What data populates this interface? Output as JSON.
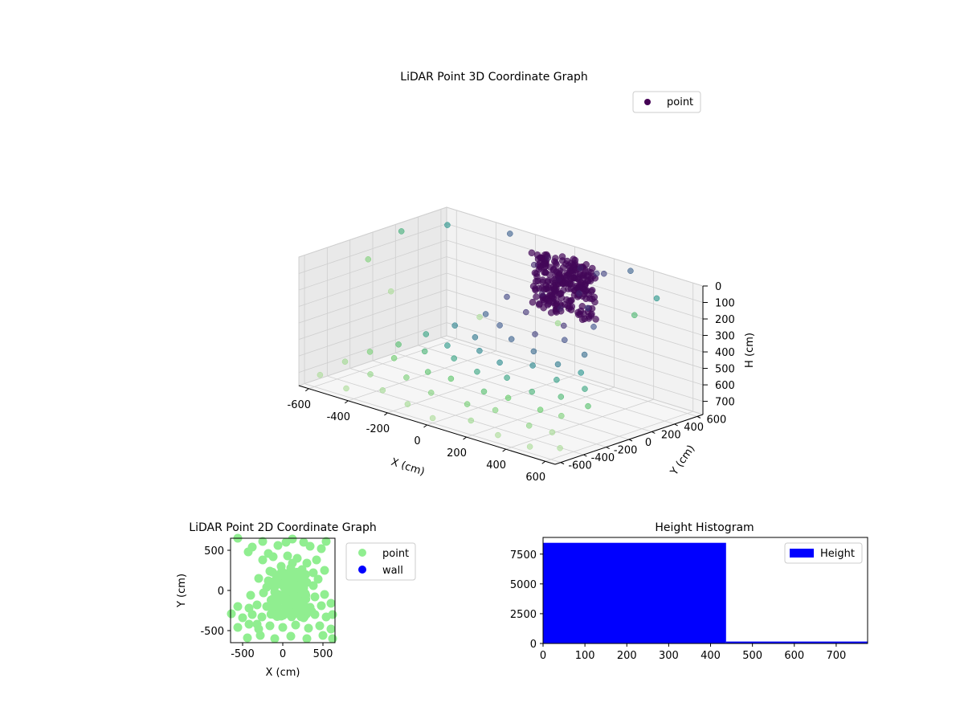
{
  "chart_data": [
    {
      "type": "scatter",
      "title": "LiDAR Point 3D Coordinate Graph",
      "xlabel": "X (cm)",
      "ylabel": "Y (cm)",
      "zlabel": "H (cm)",
      "xlim": [
        -650,
        650
      ],
      "ylim": [
        -650,
        650
      ],
      "zlim": [
        0,
        780
      ],
      "z_inverted": true,
      "xticks": [
        -600,
        -400,
        -200,
        0,
        200,
        400,
        600
      ],
      "yticks": [
        -600,
        -400,
        -200,
        0,
        200,
        400,
        600
      ],
      "zticks": [
        0,
        100,
        200,
        300,
        400,
        500,
        600,
        700
      ],
      "colormap": "viridis",
      "legend": {
        "entries": [
          "point"
        ],
        "position": "upper right"
      },
      "grid": true,
      "series": [
        {
          "name": "point",
          "dense_cluster": {
            "center": [
              0,
              550
            ],
            "radius": 160,
            "z_range": [
              50,
              380
            ]
          },
          "points": [
            [
              -60,
              520,
              60
            ],
            [
              80,
              560,
              80
            ],
            [
              140,
              600,
              100
            ],
            [
              200,
              560,
              70
            ],
            [
              -120,
              500,
              120
            ],
            [
              20,
              470,
              150
            ],
            [
              120,
              480,
              200
            ],
            [
              -40,
              430,
              250
            ],
            [
              60,
              420,
              300
            ],
            [
              180,
              450,
              260
            ],
            [
              -200,
              400,
              320
            ],
            [
              240,
              400,
              340
            ],
            [
              -80,
              360,
              360
            ],
            [
              100,
              380,
              380
            ],
            [
              -250,
              300,
              420
            ],
            [
              -150,
              250,
              440
            ],
            [
              0,
              300,
              450
            ],
            [
              150,
              300,
              430
            ],
            [
              280,
              250,
              460
            ],
            [
              -320,
              150,
              480
            ],
            [
              -200,
              120,
              500
            ],
            [
              -50,
              180,
              470
            ],
            [
              80,
              150,
              490
            ],
            [
              220,
              120,
              510
            ],
            [
              360,
              80,
              500
            ],
            [
              -380,
              0,
              520
            ],
            [
              -260,
              -20,
              540
            ],
            [
              -120,
              20,
              530
            ],
            [
              0,
              -10,
              550
            ],
            [
              150,
              20,
              520
            ],
            [
              300,
              -30,
              540
            ],
            [
              420,
              10,
              560
            ],
            [
              -450,
              -120,
              580
            ],
            [
              -300,
              -150,
              560
            ],
            [
              -180,
              -100,
              570
            ],
            [
              -40,
              -140,
              590
            ],
            [
              100,
              -120,
              580
            ],
            [
              250,
              -160,
              600
            ],
            [
              380,
              -130,
              590
            ],
            [
              500,
              -100,
              610
            ],
            [
              -520,
              -250,
              620
            ],
            [
              -380,
              -280,
              600
            ],
            [
              -220,
              -260,
              630
            ],
            [
              -80,
              -300,
              610
            ],
            [
              70,
              -270,
              640
            ],
            [
              210,
              -300,
              620
            ],
            [
              350,
              -260,
              650
            ],
            [
              480,
              -300,
              630
            ],
            [
              -560,
              -400,
              660
            ],
            [
              -420,
              -420,
              680
            ],
            [
              -260,
              -380,
              650
            ],
            [
              -100,
              -440,
              670
            ],
            [
              60,
              -400,
              690
            ],
            [
              220,
              -430,
              660
            ],
            [
              380,
              -410,
              700
            ],
            [
              520,
              -450,
              680
            ],
            [
              -600,
              -550,
              720
            ],
            [
              -450,
              -580,
              740
            ],
            [
              -300,
              -520,
              710
            ],
            [
              -150,
              -560,
              730
            ],
            [
              0,
              -600,
              750
            ],
            [
              160,
              -540,
              720
            ],
            [
              320,
              -580,
              740
            ],
            [
              470,
              -560,
              760
            ],
            [
              600,
              -520,
              730
            ],
            [
              -560,
              500,
              40
            ],
            [
              -300,
              600,
              20
            ],
            [
              300,
              620,
              30
            ],
            [
              560,
              400,
              50
            ],
            [
              -620,
              200,
              30
            ],
            [
              620,
              100,
              60
            ],
            [
              -500,
              -300,
              40
            ],
            [
              520,
              -400,
              30
            ],
            [
              -200,
              -620,
              50
            ],
            [
              250,
              -620,
              40
            ]
          ]
        }
      ]
    },
    {
      "type": "scatter",
      "title": "LiDAR Point 2D Coordinate Graph",
      "xlabel": "X (cm)",
      "ylabel": "Y (cm)",
      "xlim": [
        -650,
        650
      ],
      "ylim": [
        -650,
        650
      ],
      "xticks": [
        -500,
        0,
        500
      ],
      "yticks": [
        -500,
        0,
        500
      ],
      "legend": {
        "entries": [
          "point",
          "wall"
        ],
        "position": "outside right"
      },
      "series": [
        {
          "name": "point",
          "color": "#90ee90",
          "points": [
            [
              -560,
              650
            ],
            [
              -430,
              480
            ],
            [
              -380,
              540
            ],
            [
              -250,
              610
            ],
            [
              -180,
              460
            ],
            [
              -60,
              560
            ],
            [
              40,
              600
            ],
            [
              120,
              640
            ],
            [
              260,
              600
            ],
            [
              340,
              550
            ],
            [
              480,
              520
            ],
            [
              540,
              610
            ],
            [
              -250,
              380
            ],
            [
              -120,
              420
            ],
            [
              60,
              430
            ],
            [
              180,
              400
            ],
            [
              300,
              340
            ],
            [
              420,
              380
            ],
            [
              -20,
              300
            ],
            [
              100,
              280
            ],
            [
              240,
              260
            ],
            [
              380,
              220
            ],
            [
              -160,
              240
            ],
            [
              520,
              250
            ],
            [
              -300,
              150
            ],
            [
              -180,
              120
            ],
            [
              -60,
              160
            ],
            [
              60,
              140
            ],
            [
              180,
              120
            ],
            [
              300,
              100
            ],
            [
              440,
              140
            ],
            [
              -120,
              60
            ],
            [
              20,
              40
            ],
            [
              140,
              60
            ],
            [
              260,
              30
            ],
            [
              380,
              60
            ],
            [
              -400,
              -60
            ],
            [
              -240,
              -30
            ],
            [
              -100,
              -20
            ],
            [
              40,
              -40
            ],
            [
              160,
              -60
            ],
            [
              280,
              -40
            ],
            [
              400,
              -80
            ],
            [
              520,
              -50
            ],
            [
              -560,
              -200
            ],
            [
              -420,
              -220
            ],
            [
              -320,
              -180
            ],
            [
              -200,
              -200
            ],
            [
              -80,
              -160
            ],
            [
              60,
              -200
            ],
            [
              200,
              -170
            ],
            [
              340,
              -210
            ],
            [
              480,
              -190
            ],
            [
              600,
              -160
            ],
            [
              -640,
              -290
            ],
            [
              -500,
              -340
            ],
            [
              -380,
              -300
            ],
            [
              -260,
              -330
            ],
            [
              -140,
              -290
            ],
            [
              -20,
              -320
            ],
            [
              120,
              -300
            ],
            [
              260,
              -340
            ],
            [
              400,
              -300
            ],
            [
              540,
              -330
            ],
            [
              620,
              -300
            ],
            [
              -560,
              -460
            ],
            [
              -420,
              -420
            ],
            [
              -300,
              -480
            ],
            [
              -160,
              -440
            ],
            [
              0,
              -460
            ],
            [
              160,
              -430
            ],
            [
              320,
              -470
            ],
            [
              460,
              -440
            ],
            [
              600,
              -480
            ],
            [
              -440,
              -590
            ],
            [
              -280,
              -560
            ],
            [
              -100,
              -600
            ],
            [
              100,
              -570
            ],
            [
              300,
              -600
            ],
            [
              500,
              -560
            ],
            [
              620,
              -600
            ],
            [
              -40,
              80
            ],
            [
              80,
              -100
            ],
            [
              200,
              200
            ],
            [
              -200,
              40
            ],
            [
              0,
              200
            ],
            [
              120,
              340
            ],
            [
              -80,
              -80
            ],
            [
              240,
              -120
            ],
            [
              360,
              -260
            ],
            [
              -320,
              -420
            ]
          ]
        },
        {
          "name": "wall",
          "color": "#0000ff",
          "points": []
        }
      ]
    },
    {
      "type": "bar",
      "title": "Height Histogram",
      "xlabel": "",
      "ylabel": "",
      "xlim": [
        0,
        775
      ],
      "ylim": [
        0,
        8900
      ],
      "xticks": [
        0,
        100,
        200,
        300,
        400,
        500,
        600,
        700
      ],
      "yticks": [
        0,
        2500,
        5000,
        7500
      ],
      "legend": {
        "entries": [
          "Height"
        ],
        "position": "upper right"
      },
      "series": [
        {
          "name": "Height",
          "color": "#0000ff",
          "bins": [
            {
              "x0": 0,
              "x1": 437,
              "count": 8450
            },
            {
              "x0": 437,
              "x1": 775,
              "count": 160
            }
          ]
        }
      ]
    }
  ]
}
